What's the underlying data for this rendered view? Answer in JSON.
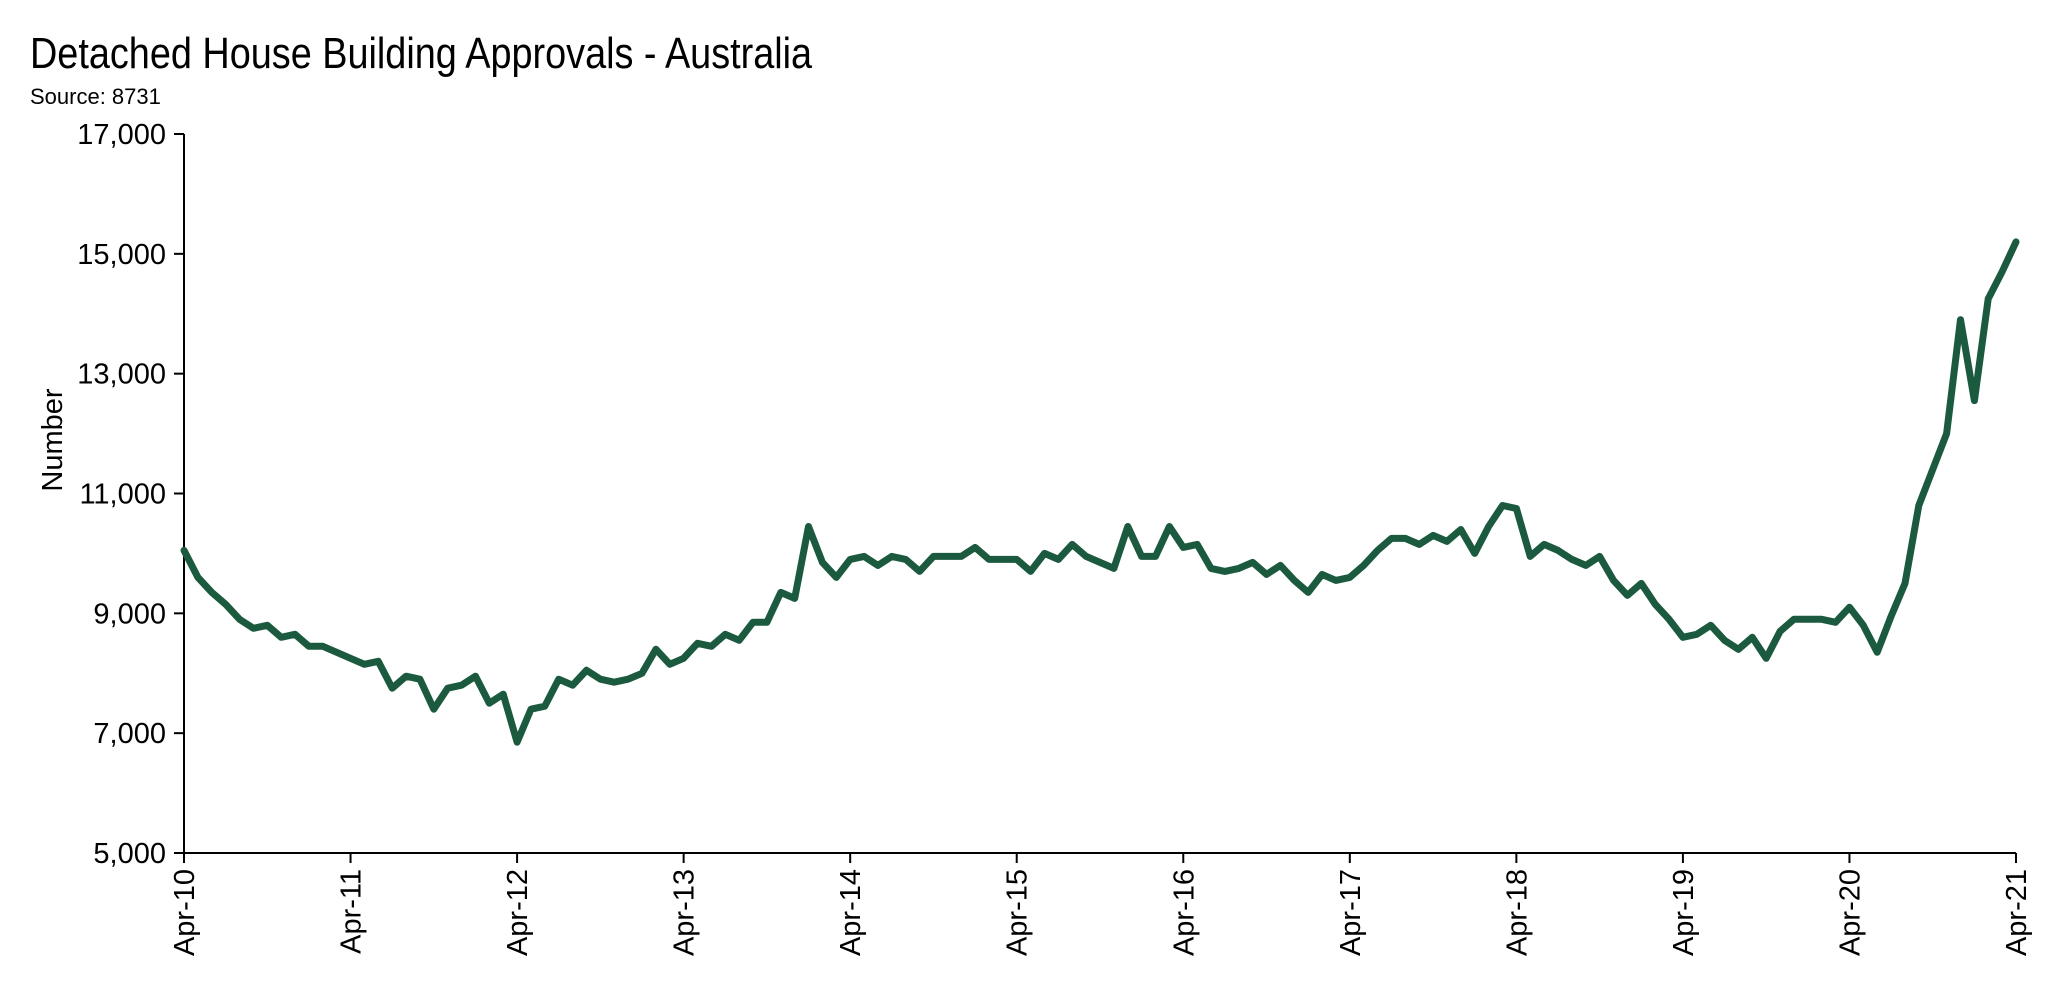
{
  "chart_data": {
    "type": "line",
    "title": "Detached House Building Approvals - Australia",
    "subtitle": "Source: 8731",
    "xlabel": "",
    "ylabel": "Number",
    "ylim": [
      5000,
      17000
    ],
    "yticks": [
      5000,
      7000,
      9000,
      11000,
      13000,
      15000,
      17000
    ],
    "ytick_labels": [
      "5,000",
      "7,000",
      "9,000",
      "11,000",
      "13,000",
      "15,000",
      "17,000"
    ],
    "xlim": [
      "2010-04",
      "2021-04"
    ],
    "xtick_labels": [
      "Apr-10",
      "Apr-11",
      "Apr-12",
      "Apr-13",
      "Apr-14",
      "Apr-15",
      "Apr-16",
      "Apr-17",
      "Apr-18",
      "Apr-19",
      "Apr-20",
      "Apr-21"
    ],
    "grid": false,
    "legend": "none",
    "colors": {
      "series": "#1b5a3f",
      "axis": "#000000"
    },
    "series": [
      {
        "x": [
          "2010-04",
          "2010-05",
          "2010-06",
          "2010-07",
          "2010-08",
          "2010-09",
          "2010-10",
          "2010-11",
          "2010-12",
          "2011-01",
          "2011-02",
          "2011-03",
          "2011-04",
          "2011-05",
          "2011-06",
          "2011-07",
          "2011-08",
          "2011-09",
          "2011-10",
          "2011-11",
          "2011-12",
          "2012-01",
          "2012-02",
          "2012-03",
          "2012-04",
          "2012-05",
          "2012-06",
          "2012-07",
          "2012-08",
          "2012-09",
          "2012-10",
          "2012-11",
          "2012-12",
          "2013-01",
          "2013-02",
          "2013-03",
          "2013-04",
          "2013-05",
          "2013-06",
          "2013-07",
          "2013-08",
          "2013-09",
          "2013-10",
          "2013-11",
          "2013-12",
          "2014-01",
          "2014-02",
          "2014-03",
          "2014-04",
          "2014-05",
          "2014-06",
          "2014-07",
          "2014-08",
          "2014-09",
          "2014-10",
          "2014-11",
          "2014-12",
          "2015-01",
          "2015-02",
          "2015-03",
          "2015-04",
          "2015-05",
          "2015-06",
          "2015-07",
          "2015-08",
          "2015-09",
          "2015-10",
          "2015-11",
          "2015-12",
          "2016-01",
          "2016-02",
          "2016-03",
          "2016-04",
          "2016-05",
          "2016-06",
          "2016-07",
          "2016-08",
          "2016-09",
          "2016-10",
          "2016-11",
          "2016-12",
          "2017-01",
          "2017-02",
          "2017-03",
          "2017-04",
          "2017-05",
          "2017-06",
          "2017-07",
          "2017-08",
          "2017-09",
          "2017-10",
          "2017-11",
          "2017-12",
          "2018-01",
          "2018-02",
          "2018-03",
          "2018-04",
          "2018-05",
          "2018-06",
          "2018-07",
          "2018-08",
          "2018-09",
          "2018-10",
          "2018-11",
          "2018-12",
          "2019-01",
          "2019-02",
          "2019-03",
          "2019-04",
          "2019-05",
          "2019-06",
          "2019-07",
          "2019-08",
          "2019-09",
          "2019-10",
          "2019-11",
          "2019-12",
          "2020-01",
          "2020-02",
          "2020-03",
          "2020-04",
          "2020-05",
          "2020-06",
          "2020-07",
          "2020-08",
          "2020-09",
          "2020-10",
          "2020-11",
          "2020-12",
          "2021-01",
          "2021-02",
          "2021-03",
          "2021-04"
        ],
        "values": [
          10050,
          9600,
          9350,
          9150,
          8900,
          8750,
          8800,
          8600,
          8650,
          8450,
          8450,
          8350,
          8250,
          8150,
          8200,
          7750,
          7950,
          7900,
          7400,
          7750,
          7800,
          7950,
          7500,
          7650,
          6850,
          7400,
          7450,
          7900,
          7800,
          8050,
          7900,
          7850,
          7900,
          8000,
          8400,
          8150,
          8250,
          8500,
          8450,
          8650,
          8550,
          8850,
          8850,
          9350,
          9250,
          10450,
          9850,
          9600,
          9900,
          9950,
          9800,
          9950,
          9900,
          9700,
          9950,
          9950,
          9950,
          10100,
          9900,
          9900,
          9900,
          9700,
          10000,
          9900,
          10150,
          9950,
          9850,
          9750,
          10450,
          9950,
          9950,
          10450,
          10100,
          10150,
          9750,
          9700,
          9750,
          9850,
          9650,
          9800,
          9550,
          9350,
          9650,
          9550,
          9600,
          9800,
          10050,
          10250,
          10250,
          10150,
          10300,
          10200,
          10400,
          10000,
          10450,
          10800,
          10750,
          9950,
          10150,
          10050,
          9900,
          9800,
          9950,
          9550,
          9300,
          9500,
          9150,
          8900,
          8600,
          8650,
          8800,
          8550,
          8400,
          8600,
          8250,
          8700,
          8900,
          8900,
          8900,
          8850,
          9100,
          8800,
          8350,
          8950,
          9500,
          10800,
          11400,
          12000,
          13900,
          12550,
          14250,
          14700,
          15200
        ]
      }
    ]
  }
}
